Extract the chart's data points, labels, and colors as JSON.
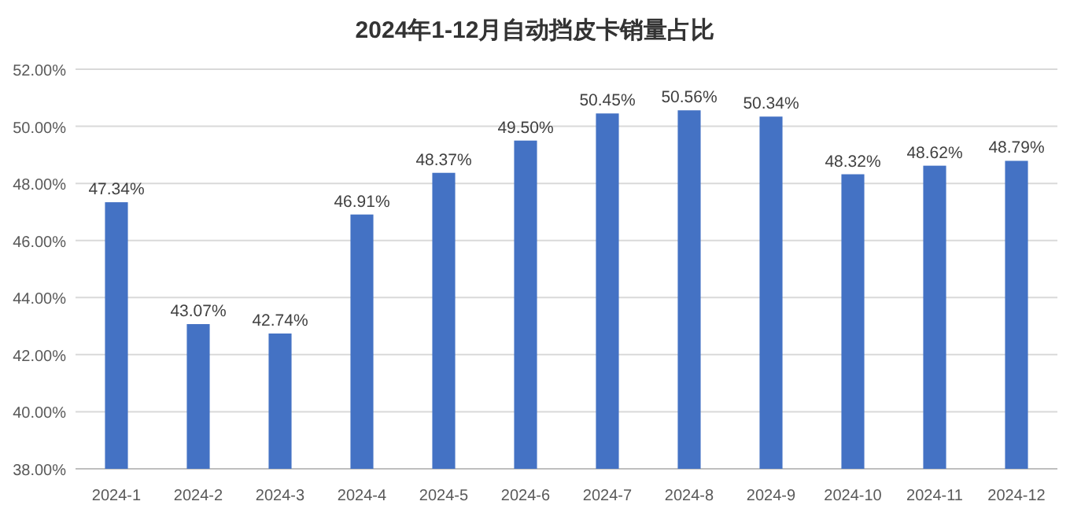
{
  "chart_data": {
    "type": "bar",
    "title": "2024年1-12月自动挡皮卡销量占比",
    "categories": [
      "2024-1",
      "2024-2",
      "2024-3",
      "2024-4",
      "2024-5",
      "2024-6",
      "2024-7",
      "2024-8",
      "2024-9",
      "2024-10",
      "2024-11",
      "2024-12"
    ],
    "values": [
      47.34,
      43.07,
      42.74,
      46.91,
      48.37,
      49.5,
      50.45,
      50.56,
      50.34,
      48.32,
      48.62,
      48.79
    ],
    "value_labels": [
      "47.34%",
      "43.07%",
      "42.74%",
      "46.91%",
      "48.37%",
      "49.50%",
      "50.45%",
      "50.56%",
      "50.34%",
      "48.32%",
      "48.62%",
      "48.79%"
    ],
    "color": "#4472c4",
    "ylim": [
      38,
      52
    ],
    "yticks": [
      {
        "value": 38,
        "label": "38.00%"
      },
      {
        "value": 40,
        "label": "40.00%"
      },
      {
        "value": 42,
        "label": "42.00%"
      },
      {
        "value": 44,
        "label": "44.00%"
      },
      {
        "value": 46,
        "label": "46.00%"
      },
      {
        "value": 48,
        "label": "48.00%"
      },
      {
        "value": 50,
        "label": "50.00%"
      },
      {
        "value": 52,
        "label": "52.00%"
      }
    ],
    "grid": "y"
  }
}
